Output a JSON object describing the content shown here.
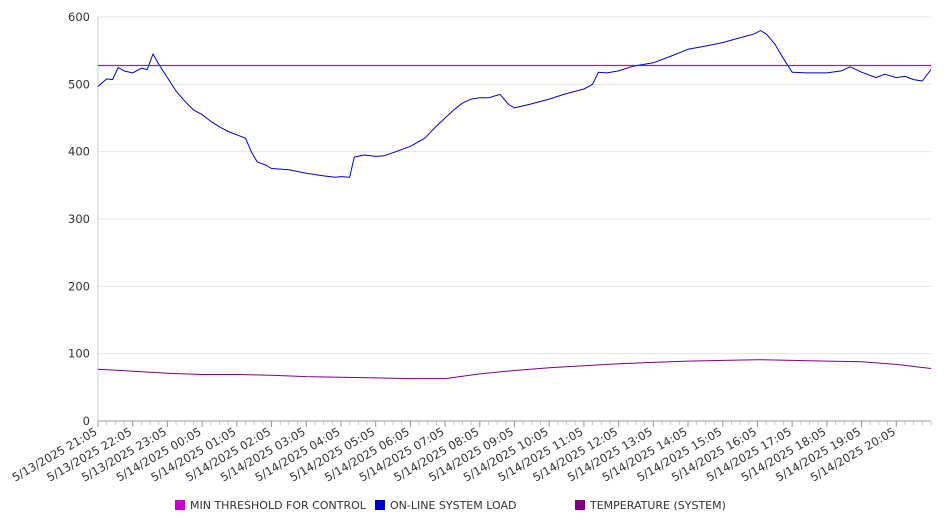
{
  "chart_data": {
    "type": "line",
    "title": "",
    "xlabel": "",
    "ylabel": "",
    "ylim": [
      0,
      600
    ],
    "yticks": [
      0,
      100,
      200,
      300,
      400,
      500,
      600
    ],
    "x_tick_labels": [
      "5/13/2025 21:05",
      "5/13/2025 22:05",
      "5/13/2025 23:05",
      "5/14/2025 00:05",
      "5/14/2025 01:05",
      "5/14/2025 02:05",
      "5/14/2025 03:05",
      "5/14/2025 04:05",
      "5/14/2025 05:05",
      "5/14/2025 06:05",
      "5/14/2025 07:05",
      "5/14/2025 08:05",
      "5/14/2025 09:05",
      "5/14/2025 10:05",
      "5/14/2025 11:05",
      "5/14/2025 12:05",
      "5/14/2025 13:05",
      "5/14/2025 14:05",
      "5/14/2025 15:05",
      "5/14/2025 16:05",
      "5/14/2025 17:05",
      "5/14/2025 18:05",
      "5/14/2025 19:05",
      "5/14/2025 20:05"
    ],
    "x_range": [
      "5/13/2025 21:05",
      "5/14/2025 21:05"
    ],
    "grid": true,
    "legend_position": "bottom",
    "series": [
      {
        "name": "MIN THRESHOLD FOR CONTROL",
        "color": "#cc00cc",
        "points": [
          [
            "5/13/2025 21:05",
            528
          ],
          [
            "5/14/2025 21:05",
            528
          ]
        ]
      },
      {
        "name": "ON-LINE SYSTEM LOAD",
        "color": "#0000cc",
        "points": [
          [
            "5/13/2025 21:05",
            497
          ],
          [
            "5/13/2025 21:20",
            508
          ],
          [
            "5/13/2025 21:30",
            507
          ],
          [
            "5/13/2025 21:40",
            525
          ],
          [
            "5/13/2025 21:50",
            520
          ],
          [
            "5/13/2025 22:05",
            517
          ],
          [
            "5/13/2025 22:20",
            524
          ],
          [
            "5/13/2025 22:30",
            522
          ],
          [
            "5/13/2025 22:40",
            545
          ],
          [
            "5/13/2025 22:50",
            530
          ],
          [
            "5/13/2025 23:05",
            510
          ],
          [
            "5/13/2025 23:20",
            490
          ],
          [
            "5/13/2025 23:35",
            475
          ],
          [
            "5/13/2025 23:50",
            462
          ],
          [
            "5/14/2025 00:05",
            455
          ],
          [
            "5/14/2025 00:20",
            445
          ],
          [
            "5/14/2025 00:35",
            437
          ],
          [
            "5/14/2025 00:50",
            430
          ],
          [
            "5/14/2025 01:05",
            425
          ],
          [
            "5/14/2025 01:20",
            420
          ],
          [
            "5/14/2025 01:30",
            400
          ],
          [
            "5/14/2025 01:40",
            385
          ],
          [
            "5/14/2025 01:55",
            380
          ],
          [
            "5/14/2025 02:05",
            375
          ],
          [
            "5/14/2025 02:35",
            373
          ],
          [
            "5/14/2025 03:05",
            368
          ],
          [
            "5/14/2025 03:35",
            364
          ],
          [
            "5/14/2025 03:55",
            362
          ],
          [
            "5/14/2025 04:05",
            363
          ],
          [
            "5/14/2025 04:20",
            362
          ],
          [
            "5/14/2025 04:28",
            392
          ],
          [
            "5/14/2025 04:45",
            395
          ],
          [
            "5/14/2025 05:05",
            393
          ],
          [
            "5/14/2025 05:20",
            394
          ],
          [
            "5/14/2025 05:40",
            400
          ],
          [
            "5/14/2025 06:05",
            408
          ],
          [
            "5/14/2025 06:30",
            420
          ],
          [
            "5/14/2025 06:50",
            438
          ],
          [
            "5/14/2025 07:05",
            450
          ],
          [
            "5/14/2025 07:20",
            462
          ],
          [
            "5/14/2025 07:35",
            472
          ],
          [
            "5/14/2025 07:50",
            478
          ],
          [
            "5/14/2025 08:05",
            480
          ],
          [
            "5/14/2025 08:20",
            480
          ],
          [
            "5/14/2025 08:40",
            485
          ],
          [
            "5/14/2025 08:55",
            470
          ],
          [
            "5/14/2025 09:05",
            465
          ],
          [
            "5/14/2025 09:30",
            470
          ],
          [
            "5/14/2025 10:05",
            478
          ],
          [
            "5/14/2025 10:30",
            485
          ],
          [
            "5/14/2025 11:05",
            493
          ],
          [
            "5/14/2025 11:20",
            500
          ],
          [
            "5/14/2025 11:30",
            518
          ],
          [
            "5/14/2025 11:45",
            517
          ],
          [
            "5/14/2025 12:05",
            520
          ],
          [
            "5/14/2025 12:30",
            527
          ],
          [
            "5/14/2025 13:05",
            532
          ],
          [
            "5/14/2025 13:30",
            540
          ],
          [
            "5/14/2025 14:05",
            552
          ],
          [
            "5/14/2025 14:30",
            556
          ],
          [
            "5/14/2025 15:05",
            562
          ],
          [
            "5/14/2025 15:30",
            568
          ],
          [
            "5/14/2025 16:00",
            575
          ],
          [
            "5/14/2025 16:10",
            580
          ],
          [
            "5/14/2025 16:20",
            575
          ],
          [
            "5/14/2025 16:35",
            560
          ],
          [
            "5/14/2025 16:50",
            538
          ],
          [
            "5/14/2025 17:05",
            518
          ],
          [
            "5/14/2025 17:30",
            517
          ],
          [
            "5/14/2025 18:05",
            517
          ],
          [
            "5/14/2025 18:30",
            520
          ],
          [
            "5/14/2025 18:45",
            526
          ],
          [
            "5/14/2025 19:05",
            518
          ],
          [
            "5/14/2025 19:30",
            510
          ],
          [
            "5/14/2025 19:45",
            515
          ],
          [
            "5/14/2025 20:05",
            510
          ],
          [
            "5/14/2025 20:20",
            512
          ],
          [
            "5/14/2025 20:35",
            507
          ],
          [
            "5/14/2025 20:50",
            505
          ],
          [
            "5/14/2025 21:05",
            522
          ]
        ]
      },
      {
        "name": "TEMPERATURE (SYSTEM)",
        "color": "#800080",
        "points": [
          [
            "5/13/2025 21:05",
            77
          ],
          [
            "5/13/2025 22:05",
            74
          ],
          [
            "5/13/2025 23:05",
            71
          ],
          [
            "5/14/2025 00:05",
            69
          ],
          [
            "5/14/2025 01:05",
            69
          ],
          [
            "5/14/2025 02:05",
            68
          ],
          [
            "5/14/2025 03:05",
            66
          ],
          [
            "5/14/2025 04:05",
            65
          ],
          [
            "5/14/2025 05:05",
            64
          ],
          [
            "5/14/2025 06:05",
            63
          ],
          [
            "5/14/2025 07:05",
            63
          ],
          [
            "5/14/2025 08:05",
            70
          ],
          [
            "5/14/2025 09:05",
            75
          ],
          [
            "5/14/2025 10:05",
            79
          ],
          [
            "5/14/2025 11:05",
            82
          ],
          [
            "5/14/2025 12:05",
            85
          ],
          [
            "5/14/2025 13:05",
            87
          ],
          [
            "5/14/2025 14:05",
            89
          ],
          [
            "5/14/2025 15:05",
            90
          ],
          [
            "5/14/2025 16:05",
            91
          ],
          [
            "5/14/2025 17:05",
            90
          ],
          [
            "5/14/2025 18:05",
            89
          ],
          [
            "5/14/2025 19:05",
            88
          ],
          [
            "5/14/2025 20:05",
            84
          ],
          [
            "5/14/2025 21:05",
            78
          ]
        ]
      }
    ]
  }
}
